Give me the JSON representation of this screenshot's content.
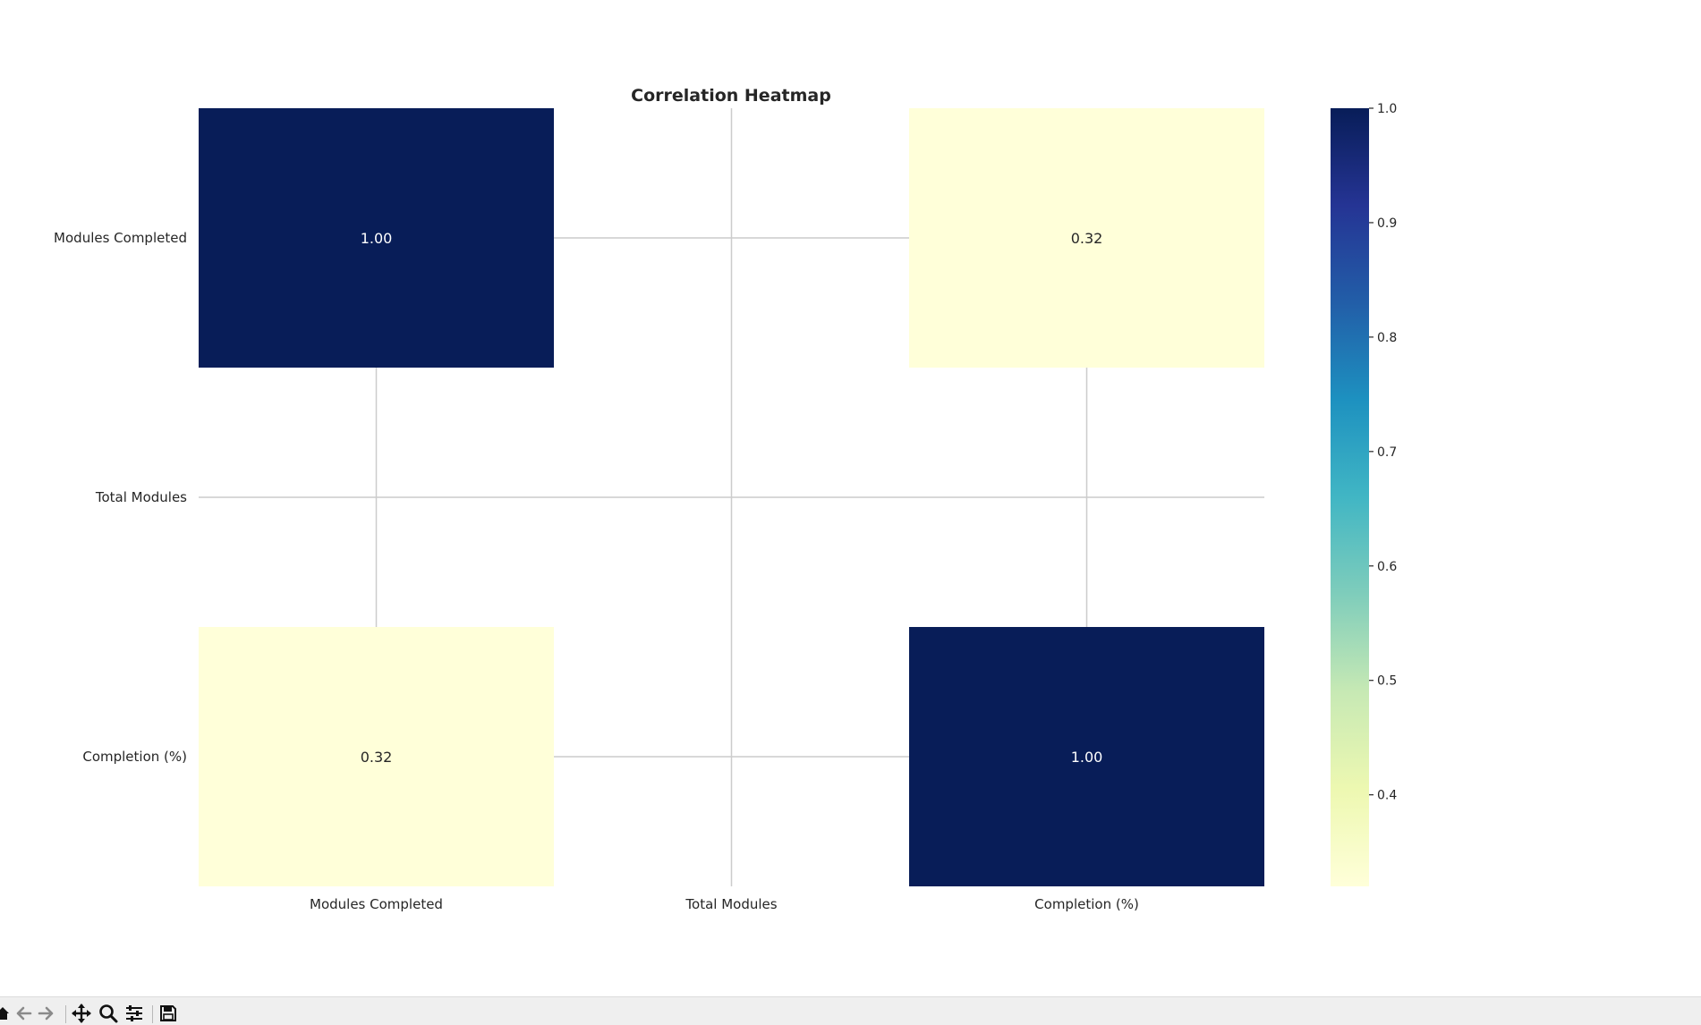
{
  "chart_data": {
    "type": "heatmap",
    "title": "Correlation Heatmap",
    "rows": [
      "Modules Completed",
      "Total Modules",
      "Completion (%)"
    ],
    "columns": [
      "Modules Completed",
      "Total Modules",
      "Completion (%)"
    ],
    "values": [
      [
        1.0,
        null,
        0.32
      ],
      [
        null,
        null,
        null
      ],
      [
        0.32,
        null,
        1.0
      ]
    ],
    "annotations": [
      [
        "1.00",
        "",
        "0.32"
      ],
      [
        "",
        "",
        ""
      ],
      [
        "0.32",
        "",
        "1.00"
      ]
    ],
    "colorbar": {
      "colormap": "YlGnBu",
      "vmin": 0.32,
      "vmax": 1.0,
      "ticks": [
        0.4,
        0.5,
        0.6,
        0.7,
        0.8,
        0.9,
        1.0
      ],
      "tick_labels": [
        "0.4",
        "0.5",
        "0.6",
        "0.7",
        "0.8",
        "0.9",
        "1.0"
      ]
    },
    "grid": true,
    "colors": {
      "high": "#081d58",
      "low": "#ffffd9",
      "annotation_on_dark": "#ffffff",
      "annotation_on_light": "#262626",
      "grid": "#cccccc"
    }
  },
  "toolbar": {
    "buttons": [
      {
        "name": "home-icon"
      },
      {
        "name": "back-icon"
      },
      {
        "name": "forward-icon"
      },
      {
        "name": "pan-icon"
      },
      {
        "name": "zoom-icon"
      },
      {
        "name": "configure-subplots-icon"
      },
      {
        "name": "save-icon"
      }
    ]
  }
}
